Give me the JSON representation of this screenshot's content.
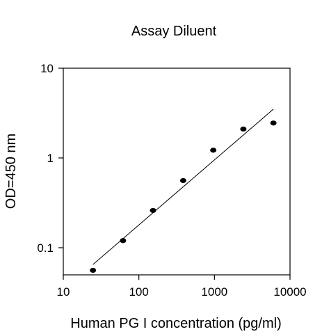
{
  "chart_data": {
    "type": "scatter",
    "title": "Assay Diluent",
    "xlabel": "Human PG I concentration (pg/ml)",
    "ylabel": "OD=450 nm",
    "x_scale": "log",
    "y_scale": "log",
    "xlim": [
      10,
      10000
    ],
    "ylim": [
      0.05,
      10
    ],
    "x_ticks": [
      10,
      100,
      1000,
      10000
    ],
    "x_tick_labels": [
      "10",
      "100",
      "1000",
      "10000"
    ],
    "y_ticks": [
      0.1,
      1,
      10
    ],
    "y_tick_labels": [
      "0.1",
      "1",
      "10"
    ],
    "grid": false,
    "legend": "none",
    "series": [
      {
        "x": [
          24.7,
          61.7,
          154,
          386,
          965,
          2413,
          6032
        ],
        "y": [
          0.056,
          0.12,
          0.26,
          0.56,
          1.22,
          2.1,
          2.45
        ]
      }
    ],
    "fit_line": {
      "x": [
        24.7,
        6032
      ],
      "y": [
        0.065,
        3.5
      ]
    },
    "colors": {
      "points": "#000000",
      "line": "#000000",
      "axes": "#000000"
    }
  }
}
